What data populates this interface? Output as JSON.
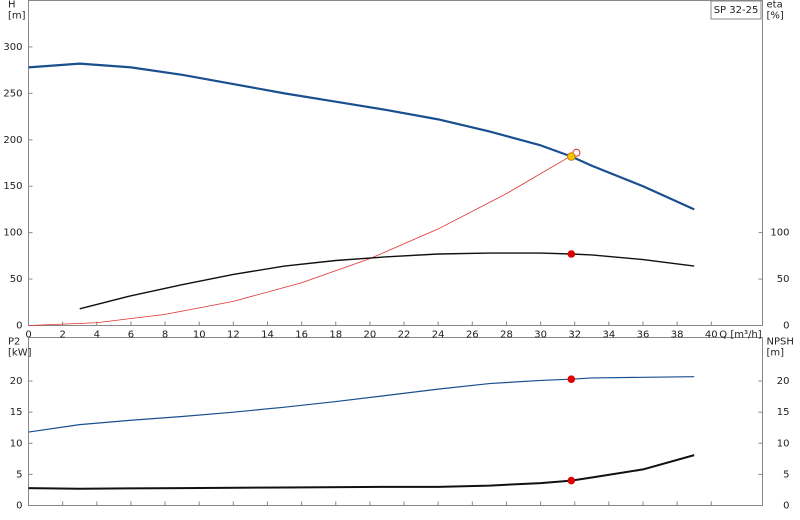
{
  "chart_data": [
    {
      "type": "line",
      "title": "SP 32-25",
      "ylabel": [
        "H",
        "[m]"
      ],
      "y2label": [
        "eta",
        "[%]"
      ],
      "xlabel": "Q [m³/h]",
      "xlim": [
        0,
        43
      ],
      "xticks": [
        0,
        2,
        4,
        6,
        8,
        10,
        12,
        14,
        16,
        18,
        20,
        22,
        24,
        26,
        28,
        30,
        32,
        34,
        36,
        38,
        40
      ],
      "ylim": [
        0,
        350
      ],
      "yticks": [
        0,
        50,
        100,
        150,
        200,
        250,
        300
      ],
      "y2lim": [
        0,
        350
      ],
      "y2ticks": [
        0,
        50,
        100
      ],
      "series": [
        {
          "color": "#1a4f8f",
          "width": 2.2,
          "x": [
            0,
            3,
            6,
            9,
            12,
            15,
            18,
            21,
            24,
            27,
            30,
            31.8,
            33,
            36,
            39
          ],
          "values": [
            278,
            282,
            278,
            270,
            260,
            250,
            241,
            232,
            222,
            209,
            194,
            182,
            172,
            150,
            125
          ]
        },
        {
          "color": "#e03030",
          "width": 0.8,
          "x": [
            0,
            4,
            8,
            12,
            16,
            20,
            24,
            28,
            32
          ],
          "values": [
            0,
            3,
            12,
            26,
            46,
            72,
            104,
            142,
            185
          ]
        },
        {
          "color": "#111111",
          "width": 1.4,
          "axis": "y2",
          "x": [
            3,
            6,
            9,
            12,
            15,
            18,
            21,
            24,
            27,
            30,
            31.8,
            33,
            36,
            39
          ],
          "values": [
            18,
            32,
            44,
            55,
            64,
            70,
            74,
            77,
            78,
            78,
            77,
            76,
            71,
            64
          ]
        },
        {
          "color": "#e03030",
          "style": "open-point",
          "x": [
            32.1
          ],
          "values": [
            186
          ]
        },
        {
          "color": "#f5c400",
          "style": "point",
          "x": [
            31.8
          ],
          "values": [
            182
          ]
        },
        {
          "color": "#e00000",
          "style": "point",
          "axis": "y2",
          "x": [
            31.8
          ],
          "values": [
            77
          ]
        }
      ]
    },
    {
      "type": "line",
      "ylabel": [
        "P2",
        "[kW]"
      ],
      "y2label": [
        "NPSH",
        "[m]"
      ],
      "xlim": [
        0,
        43
      ],
      "xticks": [
        0,
        2,
        4,
        6,
        8,
        10,
        12,
        14,
        16,
        18,
        20,
        22,
        24,
        26,
        28,
        30,
        32,
        34,
        36,
        38,
        40
      ],
      "ylim": [
        0,
        27
      ],
      "yticks": [
        0,
        5,
        10,
        15,
        20
      ],
      "y2lim": [
        0,
        27
      ],
      "y2ticks": [
        0,
        5,
        10,
        15,
        20
      ],
      "series": [
        {
          "color": "#1a4f8f",
          "width": 1.2,
          "x": [
            0,
            3,
            6,
            9,
            12,
            15,
            18,
            21,
            24,
            27,
            30,
            31.8,
            33,
            36,
            39
          ],
          "values": [
            11.8,
            13,
            13.7,
            14.3,
            15,
            15.8,
            16.7,
            17.7,
            18.7,
            19.6,
            20.1,
            20.3,
            20.5,
            20.6,
            20.7
          ]
        },
        {
          "color": "#111111",
          "width": 2,
          "axis": "y2",
          "x": [
            0,
            3,
            9,
            15,
            21,
            24,
            27,
            30,
            31.8,
            33,
            36,
            39
          ],
          "values": [
            2.8,
            2.7,
            2.8,
            2.9,
            3.0,
            3.0,
            3.2,
            3.6,
            4.0,
            4.5,
            5.8,
            8.1
          ]
        },
        {
          "color": "#e00000",
          "style": "point",
          "x": [
            31.8
          ],
          "values": [
            20.3
          ]
        },
        {
          "color": "#e00000",
          "style": "point",
          "axis": "y2",
          "x": [
            31.8
          ],
          "values": [
            4.0
          ]
        }
      ]
    }
  ]
}
